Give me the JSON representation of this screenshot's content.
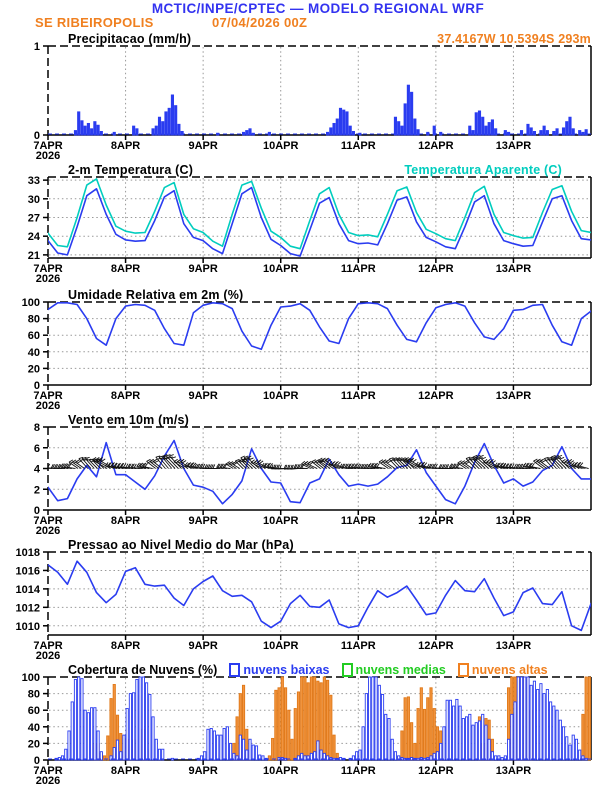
{
  "header": {
    "title": "MCTIC/INPE/CPTEC — MODELO REGIONAL WRF",
    "station": "SE RIBEIROPOLIS",
    "run": "07/04/2026 00Z",
    "coords": "37.4167W 10.5394S 293m"
  },
  "colors": {
    "header_blue": "#3333f0",
    "orange": "#f08020",
    "line_blue": "#2a3cf0",
    "cyan": "#00cdbe",
    "green": "#22cc22",
    "orange_fill": "#f2953f",
    "orange_stroke": "#e07818",
    "white": "#ffffff",
    "grid": "#999999"
  },
  "x_axis": {
    "labels": [
      "7APR",
      "8APR",
      "9APR",
      "10APR",
      "11APR",
      "12APR",
      "13APR"
    ],
    "year": "2026",
    "hours_total": 168
  },
  "chart_data": [
    {
      "id": "precipitacao",
      "type": "bar",
      "title": "Precipitacao (mm/h)",
      "ylim": [
        0,
        1
      ],
      "yticks": [
        0,
        1
      ],
      "zero_line": true,
      "series": [
        {
          "name": "precipitacao",
          "type": "bar",
          "fill": "line_blue",
          "stroke": "line_blue",
          "values": [
            0,
            0,
            0,
            0,
            0,
            0,
            0,
            0,
            0.05,
            0.26,
            0.16,
            0.1,
            0.13,
            0.07,
            0.15,
            0.11,
            0.04,
            0,
            0,
            0,
            0.03,
            0,
            0,
            0,
            0,
            0,
            0.1,
            0.07,
            0,
            0,
            0,
            0,
            0.07,
            0.1,
            0.2,
            0.15,
            0.26,
            0.3,
            0.45,
            0.33,
            0.12,
            0.04,
            0,
            0,
            0,
            0,
            0,
            0,
            0,
            0,
            0,
            0,
            0.02,
            0,
            0,
            0,
            0,
            0,
            0,
            0,
            0.03,
            0.05,
            0.07,
            0.02,
            0,
            0,
            0,
            0,
            0.03,
            0,
            0,
            0,
            0,
            0,
            0,
            0,
            0,
            0,
            0,
            0,
            0,
            0,
            0,
            0,
            0,
            0,
            0.03,
            0.08,
            0.13,
            0.18,
            0.3,
            0.28,
            0.26,
            0.1,
            0.04,
            0,
            0.02,
            0,
            0,
            0,
            0,
            0,
            0,
            0,
            0,
            0,
            0,
            0.2,
            0.15,
            0.1,
            0.35,
            0.56,
            0.48,
            0.18,
            0.06,
            0,
            0,
            0.03,
            0,
            0.1,
            0,
            0.03,
            0,
            0,
            0,
            0,
            0,
            0,
            0,
            0,
            0.1,
            0.05,
            0.25,
            0.27,
            0.2,
            0.1,
            0.14,
            0.17,
            0.07,
            0,
            0,
            0.05,
            0.03,
            0,
            0,
            0,
            0.05,
            0,
            0.12,
            0.08,
            0.04,
            0,
            0.05,
            0.1,
            0.05,
            0,
            0.04,
            0.07,
            0,
            0.08,
            0.15,
            0.2,
            0.07,
            0,
            0.05,
            0.03,
            0.06,
            0
          ]
        }
      ]
    },
    {
      "id": "temperatura",
      "type": "line",
      "title": "2-m Temperatura (C)",
      "right_label": "Temperatura Aparente (C)",
      "ylim": [
        20.5,
        33.5
      ],
      "yticks": [
        21,
        24,
        27,
        30,
        33
      ],
      "step_hours": 3,
      "series": [
        {
          "name": "2-m temperatura",
          "type": "line",
          "stroke": "line_blue",
          "values": [
            23.3,
            21.3,
            21.0,
            25.5,
            30.5,
            31.6,
            27.5,
            24.3,
            23.4,
            23.2,
            23.3,
            26.5,
            30.3,
            31.3,
            26.0,
            23.8,
            23.3,
            22.0,
            21.2,
            26.0,
            30.8,
            31.8,
            27.0,
            23.5,
            22.5,
            21.2,
            20.8,
            25.0,
            29.3,
            30.2,
            26.0,
            23.3,
            22.8,
            22.9,
            22.6,
            26.0,
            29.8,
            30.3,
            26.3,
            23.8,
            23.1,
            22.3,
            22.0,
            25.5,
            29.5,
            30.5,
            26.0,
            23.3,
            22.8,
            22.4,
            22.5,
            26.3,
            30.0,
            30.5,
            26.5,
            23.6,
            23.4
          ]
        },
        {
          "name": "temperatura aparente",
          "type": "line",
          "stroke": "cyan",
          "values": [
            24.5,
            22.5,
            22.3,
            27.0,
            32.2,
            33.2,
            29.0,
            25.6,
            24.8,
            24.5,
            24.6,
            28.0,
            31.8,
            32.6,
            27.5,
            25.2,
            24.6,
            23.2,
            22.4,
            27.5,
            32.2,
            32.8,
            28.5,
            24.8,
            23.8,
            22.4,
            22.0,
            26.5,
            30.8,
            31.8,
            27.5,
            24.6,
            24.1,
            24.2,
            23.9,
            27.5,
            31.3,
            31.9,
            27.8,
            25.1,
            24.4,
            23.6,
            23.3,
            27.0,
            31.0,
            32.0,
            27.5,
            24.6,
            24.1,
            23.7,
            23.8,
            27.8,
            31.5,
            32.1,
            28.0,
            24.9,
            24.6
          ]
        }
      ]
    },
    {
      "id": "umidade",
      "type": "line",
      "title": "Umidade Relativa em 2m (%)",
      "ylim": [
        0,
        100
      ],
      "yticks": [
        0,
        20,
        40,
        60,
        80,
        100
      ],
      "step_hours": 3,
      "series": [
        {
          "name": "umidade relativa",
          "type": "line",
          "stroke": "line_blue",
          "values": [
            91,
            99,
            99,
            97,
            80,
            56,
            48,
            80,
            95,
            97,
            96,
            90,
            68,
            50,
            48,
            87,
            96,
            99,
            98,
            92,
            65,
            47,
            43,
            72,
            94,
            95,
            98,
            90,
            70,
            53,
            50,
            80,
            98,
            99,
            98,
            92,
            72,
            55,
            52,
            75,
            93,
            97,
            99,
            95,
            75,
            58,
            55,
            68,
            90,
            91,
            96,
            97,
            72,
            52,
            48,
            80,
            89
          ]
        }
      ]
    },
    {
      "id": "vento",
      "type": "line+barbs",
      "title": "Vento em 10m (m/s)",
      "ylim": [
        0,
        8
      ],
      "yticks": [
        0,
        2,
        4,
        6,
        8
      ],
      "step_hours": 3,
      "series": [
        {
          "name": "velocidade do vento",
          "type": "line",
          "stroke": "line_blue",
          "values": [
            2.2,
            0.9,
            1.1,
            3.0,
            4.3,
            3.2,
            6.5,
            3.4,
            3.4,
            2.7,
            2.0,
            3.3,
            5.2,
            6.7,
            4.0,
            2.4,
            2.2,
            1.8,
            0.6,
            1.5,
            2.8,
            5.9,
            4.0,
            2.7,
            2.6,
            0.8,
            0.7,
            2.6,
            3.0,
            4.9,
            3.4,
            2.3,
            2.5,
            2.3,
            2.5,
            3.2,
            4.1,
            4.3,
            5.8,
            3.6,
            2.3,
            1.0,
            0.6,
            2.3,
            4.6,
            6.4,
            4.3,
            2.6,
            3.0,
            2.3,
            2.7,
            3.8,
            4.3,
            6.1,
            4.0,
            3.0,
            3.0
          ]
        }
      ],
      "barbs": {
        "anchor": 4,
        "dirs_deg": [
          -85,
          -88,
          -80,
          -55,
          -42,
          -45,
          -60,
          -78,
          -82,
          -85,
          -78,
          -52,
          -40,
          -44,
          -58,
          -75,
          -86,
          -90,
          -82,
          -58,
          -45,
          -48,
          -62,
          -80,
          -92,
          -95,
          -88,
          -65,
          -52,
          -55,
          -70,
          -85,
          -84,
          -87,
          -80,
          -55,
          -43,
          -46,
          -60,
          -76,
          -86,
          -89,
          -81,
          -56,
          -44,
          -47,
          -61,
          -78,
          -84,
          -86,
          -79,
          -54,
          -42,
          -45,
          -59,
          -75,
          -80
        ]
      }
    },
    {
      "id": "pressao",
      "type": "line",
      "title": "Pressao ao Nivel Medio do Mar (hPa)",
      "ylim": [
        1009,
        1018
      ],
      "yticks": [
        1010,
        1012,
        1014,
        1016,
        1018
      ],
      "step_hours": 3,
      "series": [
        {
          "name": "pressao nivel do mar",
          "type": "line",
          "stroke": "line_blue",
          "values": [
            1016.6,
            1015.8,
            1014.5,
            1017.0,
            1015.8,
            1013.6,
            1012.5,
            1013.4,
            1015.9,
            1016.3,
            1014.5,
            1014.3,
            1014.4,
            1013.0,
            1012.2,
            1014.0,
            1014.8,
            1015.4,
            1013.8,
            1013.2,
            1013.3,
            1012.6,
            1010.5,
            1009.8,
            1010.5,
            1012.4,
            1013.3,
            1012.1,
            1012.0,
            1012.8,
            1010.2,
            1009.8,
            1010.0,
            1012.0,
            1013.8,
            1013.1,
            1013.6,
            1014.3,
            1012.8,
            1011.2,
            1011.4,
            1013.3,
            1014.9,
            1013.8,
            1013.7,
            1015.1,
            1013.0,
            1011.1,
            1011.5,
            1013.6,
            1014.1,
            1012.4,
            1012.3,
            1013.7,
            1010.0,
            1009.5,
            1012.4
          ]
        }
      ]
    },
    {
      "id": "nuvens",
      "type": "bar",
      "title": "Cobertura de Nuvens (%)",
      "ylim": [
        0,
        100
      ],
      "yticks": [
        0,
        20,
        40,
        60,
        80,
        100
      ],
      "zero_line": true,
      "legend": [
        {
          "label": "nuvens baixas",
          "color": "line_blue"
        },
        {
          "label": "nuvens medias",
          "color": "green"
        },
        {
          "label": "nuvens altas",
          "color": "orange"
        }
      ],
      "series": [
        {
          "name": "nuvens altas",
          "type": "bar",
          "fill": "orange_fill",
          "stroke": "orange_stroke",
          "values": [
            0,
            0,
            0,
            0,
            0,
            0,
            0,
            0,
            0,
            0,
            0,
            0,
            0,
            0,
            20,
            20,
            8,
            5,
            29,
            74,
            91,
            54,
            32,
            10,
            25,
            12,
            24,
            0,
            0,
            37,
            12,
            0,
            0,
            0,
            0,
            0,
            0,
            0,
            0,
            0,
            0,
            0,
            0,
            0,
            0,
            0,
            0,
            0,
            0,
            0,
            0,
            0,
            0,
            0,
            0,
            0,
            0,
            20,
            52,
            80,
            90,
            37,
            7,
            0,
            0,
            0,
            0,
            0,
            5,
            26,
            84,
            87,
            100,
            87,
            60,
            25,
            62,
            82,
            100,
            100,
            93,
            100,
            100,
            95,
            93,
            100,
            96,
            78,
            30,
            8,
            0,
            0,
            0,
            0,
            0,
            0,
            0,
            0,
            0,
            0,
            0,
            0,
            0,
            0,
            0,
            0,
            0,
            0,
            4,
            35,
            75,
            76,
            45,
            20,
            62,
            87,
            61,
            75,
            87,
            62,
            40,
            35,
            0,
            0,
            0,
            0,
            0,
            0,
            0,
            0,
            0,
            0,
            0,
            52,
            20,
            50,
            48,
            25,
            0,
            0,
            0,
            0,
            87,
            100,
            100,
            100,
            96,
            100,
            88,
            60,
            0,
            0,
            0,
            0,
            0,
            0,
            0,
            0,
            0,
            0,
            0,
            0,
            0,
            0,
            0,
            55,
            100,
            100
          ]
        },
        {
          "name": "nuvens medias",
          "type": "bar",
          "fill": "green",
          "stroke": "green",
          "values": []
        },
        {
          "name": "nuvens baixas",
          "type": "bar",
          "fill": "white",
          "stroke": "line_blue",
          "values": [
            0,
            0,
            2,
            3,
            5,
            13,
            35,
            70,
            97,
            100,
            98,
            60,
            57,
            63,
            63,
            35,
            10,
            0,
            0,
            5,
            15,
            24,
            10,
            30,
            62,
            80,
            81,
            97,
            100,
            100,
            93,
            79,
            52,
            25,
            13,
            13,
            0,
            0,
            2,
            0,
            0,
            0,
            0,
            0,
            0,
            0,
            2,
            5,
            10,
            37,
            38,
            35,
            30,
            30,
            38,
            40,
            20,
            8,
            5,
            30,
            25,
            12,
            25,
            18,
            17,
            6,
            5,
            2,
            0,
            0,
            0,
            3,
            3,
            2,
            0,
            0,
            2,
            5,
            8,
            5,
            5,
            8,
            10,
            23,
            12,
            8,
            5,
            3,
            2,
            2,
            3,
            2,
            0,
            2,
            5,
            10,
            12,
            40,
            80,
            100,
            100,
            100,
            90,
            79,
            55,
            50,
            25,
            10,
            5,
            3,
            2,
            2,
            3,
            2,
            2,
            3,
            2,
            3,
            5,
            8,
            10,
            20,
            40,
            72,
            72,
            65,
            73,
            65,
            50,
            52,
            55,
            42,
            45,
            47,
            55,
            42,
            25,
            10,
            5,
            5,
            3,
            5,
            25,
            55,
            70,
            100,
            100,
            100,
            100,
            90,
            95,
            85,
            92,
            80,
            85,
            70,
            65,
            60,
            48,
            40,
            28,
            18,
            30,
            25,
            12,
            5,
            2,
            0
          ]
        }
      ]
    }
  ]
}
